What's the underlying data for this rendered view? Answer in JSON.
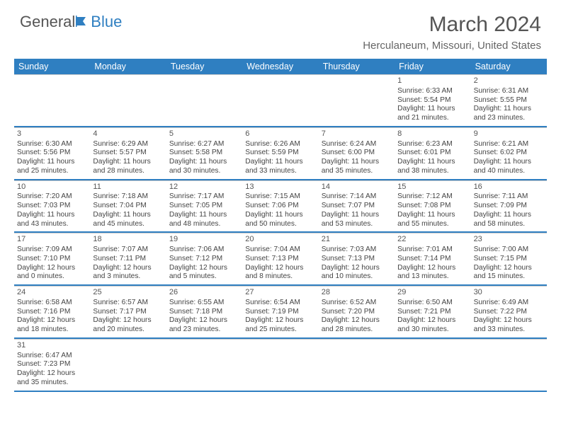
{
  "logo": {
    "general": "General",
    "blue": "Blue"
  },
  "title": "March 2024",
  "location": "Herculaneum, Missouri, United States",
  "colors": {
    "header_bg": "#2f7fc1",
    "header_text": "#ffffff",
    "border": "#2f7fc1",
    "cell_border": "#cccccc",
    "text": "#444444",
    "title_text": "#555555"
  },
  "day_headers": [
    "Sunday",
    "Monday",
    "Tuesday",
    "Wednesday",
    "Thursday",
    "Friday",
    "Saturday"
  ],
  "weeks": [
    [
      null,
      null,
      null,
      null,
      null,
      {
        "n": "1",
        "sr": "Sunrise: 6:33 AM",
        "ss": "Sunset: 5:54 PM",
        "d1": "Daylight: 11 hours",
        "d2": "and 21 minutes."
      },
      {
        "n": "2",
        "sr": "Sunrise: 6:31 AM",
        "ss": "Sunset: 5:55 PM",
        "d1": "Daylight: 11 hours",
        "d2": "and 23 minutes."
      }
    ],
    [
      {
        "n": "3",
        "sr": "Sunrise: 6:30 AM",
        "ss": "Sunset: 5:56 PM",
        "d1": "Daylight: 11 hours",
        "d2": "and 25 minutes."
      },
      {
        "n": "4",
        "sr": "Sunrise: 6:29 AM",
        "ss": "Sunset: 5:57 PM",
        "d1": "Daylight: 11 hours",
        "d2": "and 28 minutes."
      },
      {
        "n": "5",
        "sr": "Sunrise: 6:27 AM",
        "ss": "Sunset: 5:58 PM",
        "d1": "Daylight: 11 hours",
        "d2": "and 30 minutes."
      },
      {
        "n": "6",
        "sr": "Sunrise: 6:26 AM",
        "ss": "Sunset: 5:59 PM",
        "d1": "Daylight: 11 hours",
        "d2": "and 33 minutes."
      },
      {
        "n": "7",
        "sr": "Sunrise: 6:24 AM",
        "ss": "Sunset: 6:00 PM",
        "d1": "Daylight: 11 hours",
        "d2": "and 35 minutes."
      },
      {
        "n": "8",
        "sr": "Sunrise: 6:23 AM",
        "ss": "Sunset: 6:01 PM",
        "d1": "Daylight: 11 hours",
        "d2": "and 38 minutes."
      },
      {
        "n": "9",
        "sr": "Sunrise: 6:21 AM",
        "ss": "Sunset: 6:02 PM",
        "d1": "Daylight: 11 hours",
        "d2": "and 40 minutes."
      }
    ],
    [
      {
        "n": "10",
        "sr": "Sunrise: 7:20 AM",
        "ss": "Sunset: 7:03 PM",
        "d1": "Daylight: 11 hours",
        "d2": "and 43 minutes."
      },
      {
        "n": "11",
        "sr": "Sunrise: 7:18 AM",
        "ss": "Sunset: 7:04 PM",
        "d1": "Daylight: 11 hours",
        "d2": "and 45 minutes."
      },
      {
        "n": "12",
        "sr": "Sunrise: 7:17 AM",
        "ss": "Sunset: 7:05 PM",
        "d1": "Daylight: 11 hours",
        "d2": "and 48 minutes."
      },
      {
        "n": "13",
        "sr": "Sunrise: 7:15 AM",
        "ss": "Sunset: 7:06 PM",
        "d1": "Daylight: 11 hours",
        "d2": "and 50 minutes."
      },
      {
        "n": "14",
        "sr": "Sunrise: 7:14 AM",
        "ss": "Sunset: 7:07 PM",
        "d1": "Daylight: 11 hours",
        "d2": "and 53 minutes."
      },
      {
        "n": "15",
        "sr": "Sunrise: 7:12 AM",
        "ss": "Sunset: 7:08 PM",
        "d1": "Daylight: 11 hours",
        "d2": "and 55 minutes."
      },
      {
        "n": "16",
        "sr": "Sunrise: 7:11 AM",
        "ss": "Sunset: 7:09 PM",
        "d1": "Daylight: 11 hours",
        "d2": "and 58 minutes."
      }
    ],
    [
      {
        "n": "17",
        "sr": "Sunrise: 7:09 AM",
        "ss": "Sunset: 7:10 PM",
        "d1": "Daylight: 12 hours",
        "d2": "and 0 minutes."
      },
      {
        "n": "18",
        "sr": "Sunrise: 7:07 AM",
        "ss": "Sunset: 7:11 PM",
        "d1": "Daylight: 12 hours",
        "d2": "and 3 minutes."
      },
      {
        "n": "19",
        "sr": "Sunrise: 7:06 AM",
        "ss": "Sunset: 7:12 PM",
        "d1": "Daylight: 12 hours",
        "d2": "and 5 minutes."
      },
      {
        "n": "20",
        "sr": "Sunrise: 7:04 AM",
        "ss": "Sunset: 7:13 PM",
        "d1": "Daylight: 12 hours",
        "d2": "and 8 minutes."
      },
      {
        "n": "21",
        "sr": "Sunrise: 7:03 AM",
        "ss": "Sunset: 7:13 PM",
        "d1": "Daylight: 12 hours",
        "d2": "and 10 minutes."
      },
      {
        "n": "22",
        "sr": "Sunrise: 7:01 AM",
        "ss": "Sunset: 7:14 PM",
        "d1": "Daylight: 12 hours",
        "d2": "and 13 minutes."
      },
      {
        "n": "23",
        "sr": "Sunrise: 7:00 AM",
        "ss": "Sunset: 7:15 PM",
        "d1": "Daylight: 12 hours",
        "d2": "and 15 minutes."
      }
    ],
    [
      {
        "n": "24",
        "sr": "Sunrise: 6:58 AM",
        "ss": "Sunset: 7:16 PM",
        "d1": "Daylight: 12 hours",
        "d2": "and 18 minutes."
      },
      {
        "n": "25",
        "sr": "Sunrise: 6:57 AM",
        "ss": "Sunset: 7:17 PM",
        "d1": "Daylight: 12 hours",
        "d2": "and 20 minutes."
      },
      {
        "n": "26",
        "sr": "Sunrise: 6:55 AM",
        "ss": "Sunset: 7:18 PM",
        "d1": "Daylight: 12 hours",
        "d2": "and 23 minutes."
      },
      {
        "n": "27",
        "sr": "Sunrise: 6:54 AM",
        "ss": "Sunset: 7:19 PM",
        "d1": "Daylight: 12 hours",
        "d2": "and 25 minutes."
      },
      {
        "n": "28",
        "sr": "Sunrise: 6:52 AM",
        "ss": "Sunset: 7:20 PM",
        "d1": "Daylight: 12 hours",
        "d2": "and 28 minutes."
      },
      {
        "n": "29",
        "sr": "Sunrise: 6:50 AM",
        "ss": "Sunset: 7:21 PM",
        "d1": "Daylight: 12 hours",
        "d2": "and 30 minutes."
      },
      {
        "n": "30",
        "sr": "Sunrise: 6:49 AM",
        "ss": "Sunset: 7:22 PM",
        "d1": "Daylight: 12 hours",
        "d2": "and 33 minutes."
      }
    ],
    [
      {
        "n": "31",
        "sr": "Sunrise: 6:47 AM",
        "ss": "Sunset: 7:23 PM",
        "d1": "Daylight: 12 hours",
        "d2": "and 35 minutes."
      },
      null,
      null,
      null,
      null,
      null,
      null
    ]
  ]
}
